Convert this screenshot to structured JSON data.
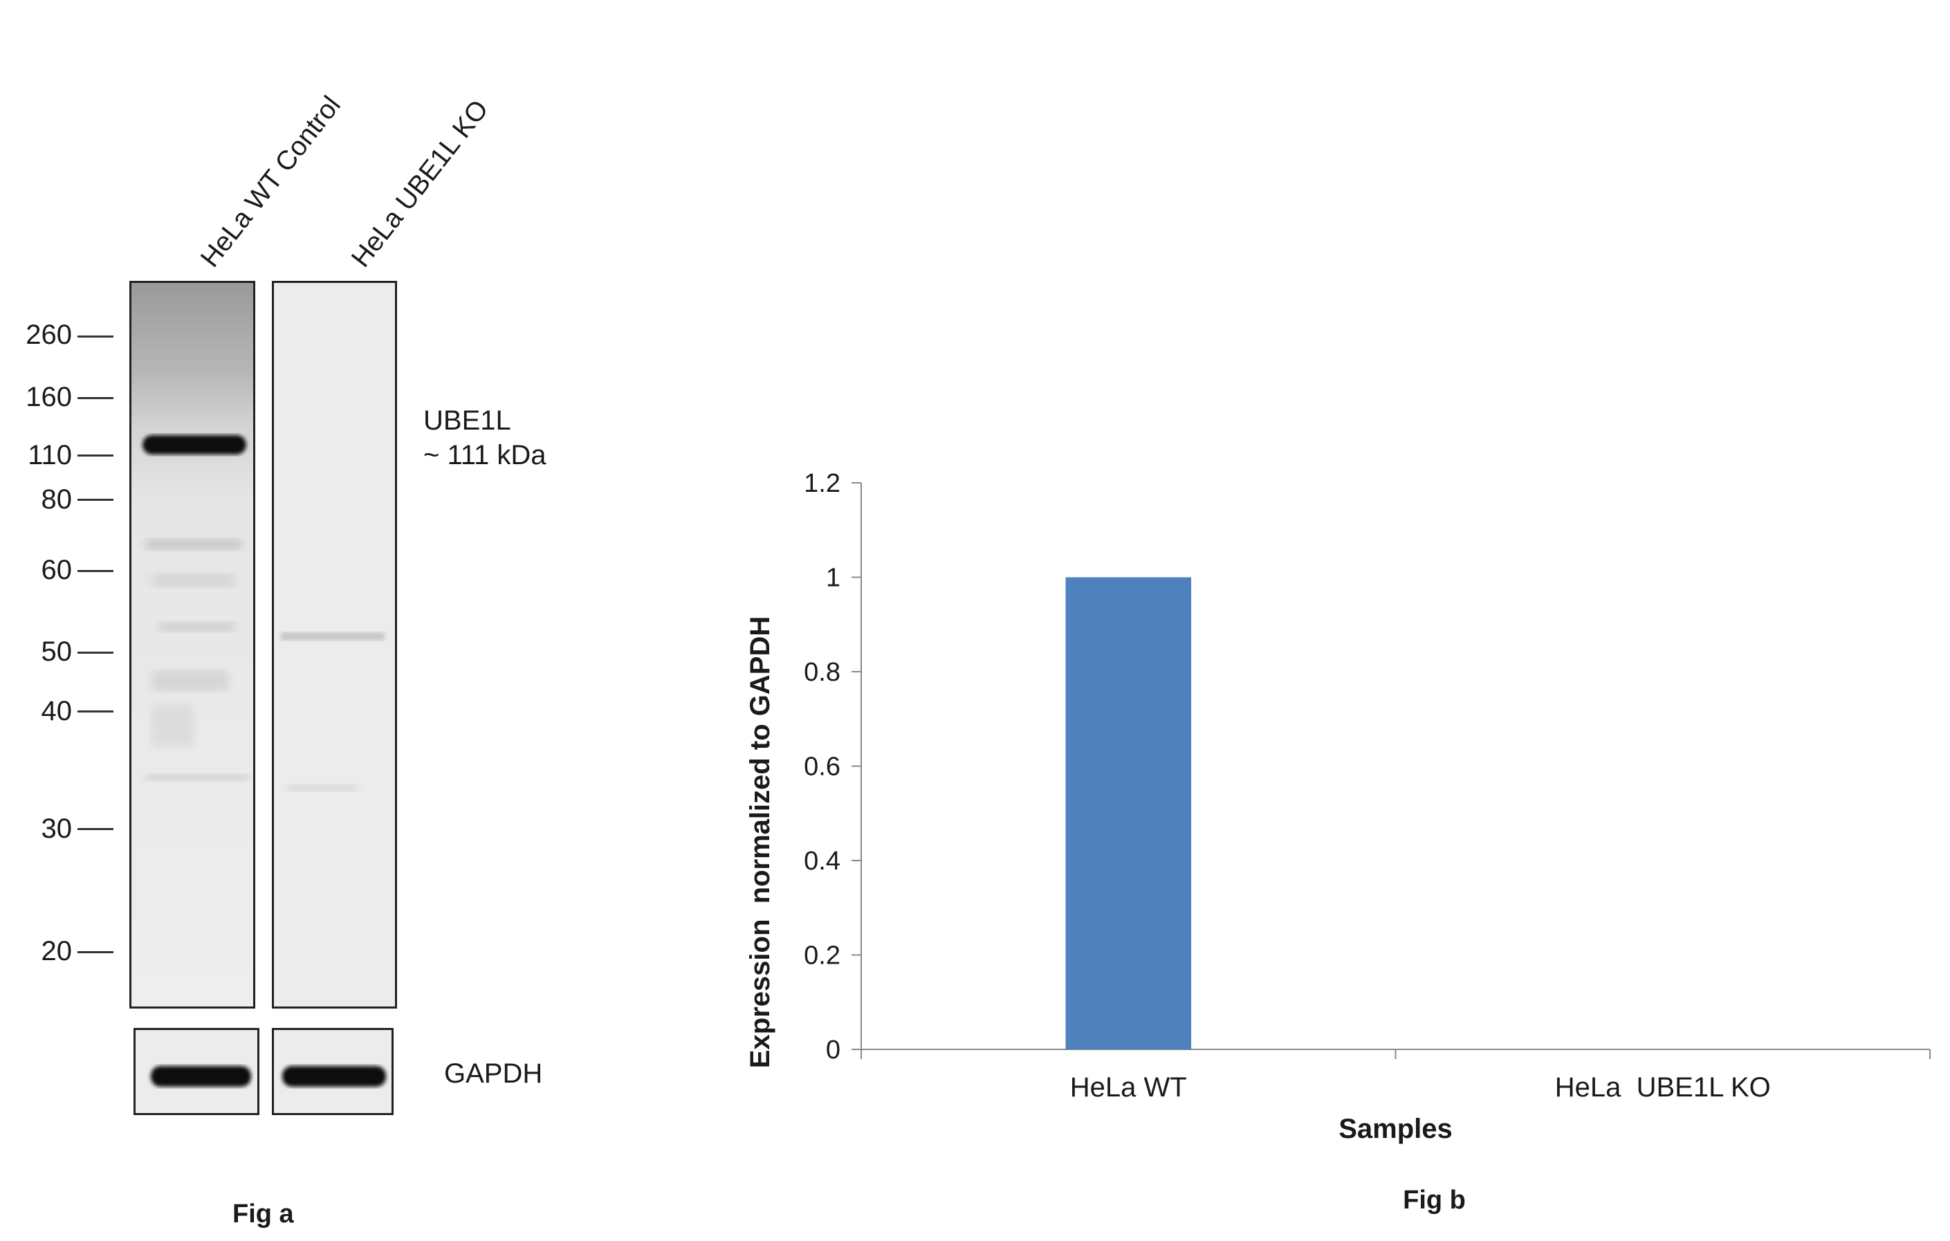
{
  "blot": {
    "lanes": [
      "HeLa WT Control",
      "HeLa UBE1L KO"
    ],
    "markers": [
      "260",
      "160",
      "110",
      "80",
      "60",
      "50",
      "40",
      "30",
      "20"
    ],
    "target_name": "UBE1L",
    "target_size": "~ 111 kDa",
    "loading_control": "GAPDH",
    "caption": "Fig a"
  },
  "chart_data": {
    "type": "bar",
    "categories": [
      "HeLa WT",
      "HeLa  UBE1L KO"
    ],
    "values": [
      1,
      0
    ],
    "xlabel": "Samples",
    "ylabel": "Expression  normalized to GAPDH",
    "ylim": [
      0,
      1.2
    ],
    "yticks": [
      "0",
      "0.2",
      "0.4",
      "0.6",
      "0.8",
      "1",
      "1.2"
    ],
    "bar_color": "#4f81bd",
    "grid": false,
    "legend": "none",
    "caption": "Fig b"
  }
}
